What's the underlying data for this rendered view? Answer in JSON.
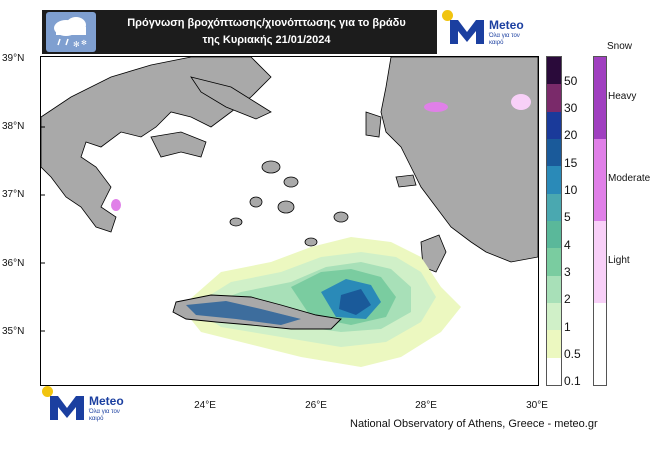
{
  "header": {
    "title_line1": "Πρόγνωση βροχόπτωσης/χιονόπτωσης για το βράδυ",
    "title_line2": "της Κυριακής 21/01/2024",
    "icon": "rain-snow-cloud-icon"
  },
  "logo": {
    "name": "Meteo",
    "tagline_line1": "Όλα για",
    "tagline_line2": "τον καιρό",
    "brand_color": "#1b3fa0",
    "sun_color": "#f1c40f"
  },
  "map": {
    "lat_labels": [
      "39°N",
      "38°N",
      "37°N",
      "36°N",
      "35°N"
    ],
    "lon_labels": [
      "24°E",
      "26°E",
      "28°E",
      "30°E"
    ],
    "land_color": "#a9a9a9",
    "sea_color": "#ffffff"
  },
  "rain_scale": {
    "labels": [
      "50",
      "30",
      "20",
      "15",
      "10",
      "5",
      "4",
      "3",
      "2",
      "1",
      "0.5",
      "0.1"
    ],
    "colors": [
      "#2a0a3a",
      "#7a2a6a",
      "#1a3a9a",
      "#1a5a9a",
      "#2a8ab8",
      "#4aa8b0",
      "#5ab89a",
      "#7acca0",
      "#a8e0b8",
      "#d0f0c8",
      "#ecf8c0",
      "#ffffff"
    ]
  },
  "snow_scale": {
    "title": "Snow",
    "labels": [
      "Heavy",
      "Moderate",
      "Light"
    ],
    "colors": [
      "#a040c0",
      "#e080e8",
      "#f8d0f8"
    ]
  },
  "credit": "National Observatory of Athens, Greece - meteo.gr"
}
